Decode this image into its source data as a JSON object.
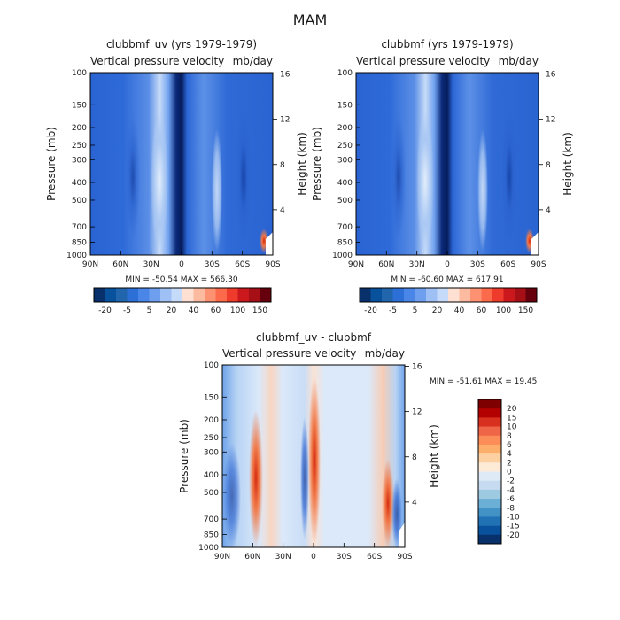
{
  "figure_title": "MAM",
  "chart_data": [
    {
      "type": "heatmap",
      "title": "clubbmf_uv (yrs 1979-1979)",
      "subtitle": "Vertical pressure velocity",
      "units": "mb/day",
      "ylabel": "Pressure (mb)",
      "y2label": "Height (km)",
      "x_ticks": [
        "90N",
        "60N",
        "30N",
        "0",
        "30S",
        "60S",
        "90S"
      ],
      "y_ticks": [
        "100",
        "150",
        "200",
        "250",
        "300",
        "400",
        "500",
        "700",
        "850",
        "1000"
      ],
      "y2_ticks": [
        "16",
        "12",
        "8",
        "4"
      ],
      "stats": "MIN = -50.54   MAX = 566.30",
      "colorbar": {
        "orientation": "horizontal",
        "labels": [
          "-20",
          "-5",
          "5",
          "20",
          "40",
          "60",
          "100",
          "150"
        ],
        "colors": [
          "#08306b",
          "#08519c",
          "#2166ac",
          "#2c6fd6",
          "#4a86e8",
          "#6e9fef",
          "#9ec0f5",
          "#c6dbfa",
          "#fde0d2",
          "#fcbba1",
          "#fc9272",
          "#fb6a4a",
          "#ef3b2c",
          "#cb181d",
          "#a50f15",
          "#67000d"
        ]
      }
    },
    {
      "type": "heatmap",
      "title": "clubbmf (yrs 1979-1979)",
      "subtitle": "Vertical pressure velocity",
      "units": "mb/day",
      "ylabel": "Pressure (mb)",
      "y2label": "Height (km)",
      "x_ticks": [
        "90N",
        "60N",
        "30N",
        "0",
        "30S",
        "60S",
        "90S"
      ],
      "y_ticks": [
        "100",
        "150",
        "200",
        "250",
        "300",
        "400",
        "500",
        "700",
        "850",
        "1000"
      ],
      "y2_ticks": [
        "16",
        "12",
        "8",
        "4"
      ],
      "stats": "MIN = -60.60   MAX = 617.91",
      "colorbar": {
        "orientation": "horizontal",
        "labels": [
          "-20",
          "-5",
          "5",
          "20",
          "40",
          "60",
          "100",
          "150"
        ],
        "colors": [
          "#08306b",
          "#08519c",
          "#2166ac",
          "#2c6fd6",
          "#4a86e8",
          "#6e9fef",
          "#9ec0f5",
          "#c6dbfa",
          "#fde0d2",
          "#fcbba1",
          "#fc9272",
          "#fb6a4a",
          "#ef3b2c",
          "#cb181d",
          "#a50f15",
          "#67000d"
        ]
      }
    },
    {
      "type": "heatmap",
      "title": "clubbmf_uv - clubbmf",
      "subtitle": "Vertical pressure velocity",
      "units": "mb/day",
      "ylabel": "Pressure (mb)",
      "y2label": "Height (km)",
      "x_ticks": [
        "90N",
        "60N",
        "30N",
        "0",
        "30S",
        "60S",
        "90S"
      ],
      "y_ticks": [
        "100",
        "150",
        "200",
        "250",
        "300",
        "400",
        "500",
        "700",
        "850",
        "1000"
      ],
      "y2_ticks": [
        "16",
        "12",
        "8",
        "4"
      ],
      "stats": "MIN = -51.61   MAX =  19.45",
      "colorbar": {
        "orientation": "vertical",
        "labels": [
          "20",
          "15",
          "10",
          "8",
          "6",
          "4",
          "2",
          "0",
          "-2",
          "-4",
          "-6",
          "-8",
          "-10",
          "-15",
          "-20"
        ],
        "colors": [
          "#7f0000",
          "#b30000",
          "#d7301f",
          "#ef6548",
          "#fc8d59",
          "#fdae6b",
          "#fdd0a2",
          "#fdebd8",
          "#deebf7",
          "#c6dbef",
          "#9ecae1",
          "#6baed6",
          "#4292c6",
          "#2171b5",
          "#08519c",
          "#08306b"
        ]
      }
    }
  ]
}
